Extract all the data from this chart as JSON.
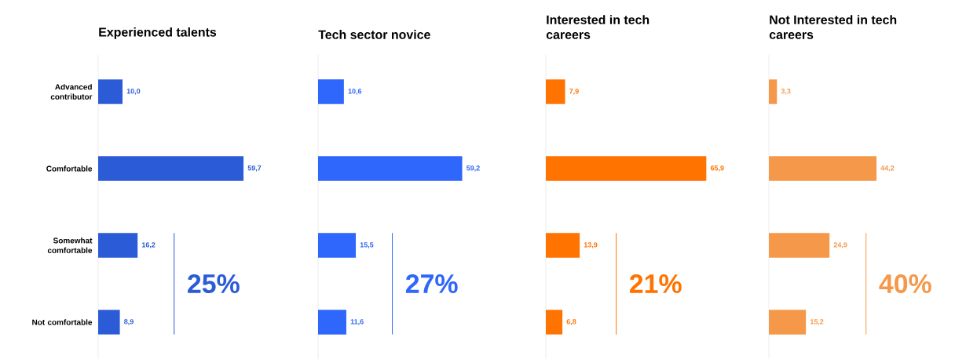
{
  "chart_data": [
    {
      "type": "bar",
      "orientation": "horizontal",
      "title": "Experienced talents",
      "categories": [
        "Advanced contributor",
        "Comfortable",
        "Somewhat comfortable",
        "Not comfortable"
      ],
      "values": [
        10.0,
        59.7,
        16.2,
        8.9
      ],
      "value_labels": [
        "10,0",
        "59,7",
        "16,2",
        "8,9"
      ],
      "color": "#2b5bd7",
      "annotations": [
        "25%"
      ]
    },
    {
      "type": "bar",
      "orientation": "horizontal",
      "title": "Tech sector novice",
      "categories": [
        null,
        null,
        null,
        null
      ],
      "values": [
        10.6,
        59.2,
        15.5,
        11.6
      ],
      "value_labels": [
        "10,6",
        "59,2",
        "15,5",
        "11,6"
      ],
      "color": "#2f66fb",
      "tick_labels": false,
      "annotations": [
        "27%"
      ]
    },
    {
      "type": "bar",
      "orientation": "horizontal",
      "title": "Interested in tech careers",
      "categories": [
        null,
        null,
        null,
        null
      ],
      "values": [
        7.9,
        65.9,
        13.9,
        6.8
      ],
      "value_labels": [
        "7,9",
        "65,9",
        "13,9",
        "6,8"
      ],
      "color": "#ff7300",
      "tick_labels": false,
      "annotations": [
        "21%"
      ]
    },
    {
      "type": "bar",
      "orientation": "horizontal",
      "title": "Not Interested in tech careers",
      "categories": [
        null,
        null,
        null,
        null
      ],
      "values": [
        3.3,
        44.2,
        24.9,
        15.2
      ],
      "value_labels": [
        "3,3",
        "44,2",
        "24,9",
        "15,2"
      ],
      "color": "#f5984a",
      "tick_labels": false,
      "annotations": [
        "40%"
      ]
    }
  ]
}
